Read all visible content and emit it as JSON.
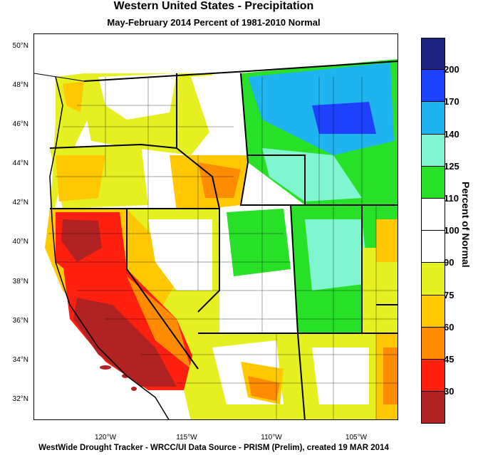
{
  "title": "Western United States - Precipitation",
  "subtitle": "May-February 2014  Percent of 1981-2010 Normal",
  "lat_ticks": [
    "50°N",
    "48°N",
    "46°N",
    "44°N",
    "42°N",
    "40°N",
    "38°N",
    "36°N",
    "34°N",
    "32°N"
  ],
  "lon_ticks": [
    "120°W",
    "115°W",
    "110°W",
    "105°W"
  ],
  "legend": {
    "title": "Percent of Normal",
    "bins": [
      {
        "color": "#1a237e",
        "label": "200"
      },
      {
        "color": "#1e40ff",
        "label": "170"
      },
      {
        "color": "#1fb4f0",
        "label": "140"
      },
      {
        "color": "#7ff5d0",
        "label": "125"
      },
      {
        "color": "#28e028",
        "label": "110"
      },
      {
        "color": "#ffffff",
        "label": "100"
      },
      {
        "color": "#ffffff",
        "label": "90"
      },
      {
        "color": "#e6f020",
        "label": "75"
      },
      {
        "color": "#ffc800",
        "label": "60"
      },
      {
        "color": "#ff8c00",
        "label": "45"
      },
      {
        "color": "#ff2010",
        "label": "30"
      },
      {
        "color": "#b22222",
        "label": ""
      }
    ]
  },
  "footer": "WestWide Drought Tracker - WRCC/UI  Data Source - PRISM (Prelim), created 19 MAR 2014"
}
